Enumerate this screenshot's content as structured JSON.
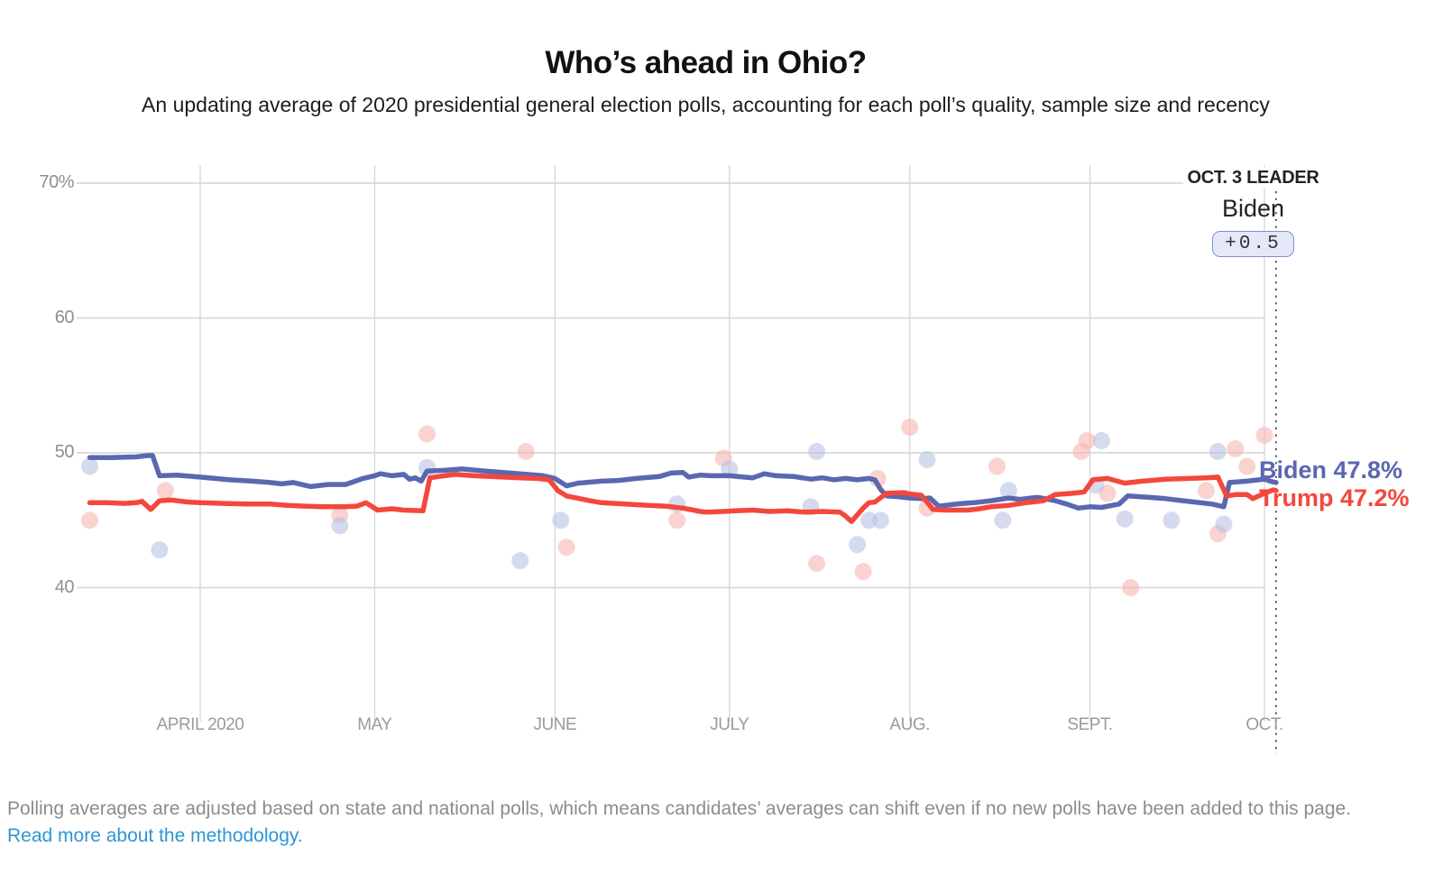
{
  "header": {
    "title": "Who’s ahead in Ohio?",
    "subtitle": "An updating average of 2020 presidential general election polls, accounting for each poll’s quality, sample size and recency"
  },
  "leader": {
    "label": "OCT. 3 LEADER",
    "name": "Biden",
    "margin": "+0.5"
  },
  "series_labels": {
    "biden": "Biden 47.8%",
    "trump": "Trump 47.2%"
  },
  "footer": {
    "text": "Polling averages are adjusted based on state and national polls, which means candidates’ averages can shift even if no new polls have been added to this page.",
    "link": "Read more about the methodology."
  },
  "colors": {
    "biden": "#5a67b1",
    "trump": "#f4473c",
    "biden_dot": "#b9c2e4",
    "trump_dot": "#f6b6b1",
    "grid": "#dadada",
    "month_grid": "#d9d9d9",
    "dashed": "#444444",
    "axis_text": "#8f8f8f",
    "link": "#2e96d4",
    "badge_bg": "#e4e8f8",
    "badge_border": "#7e8fd1"
  },
  "chart_data": {
    "type": "line",
    "title": "Who’s ahead in Ohio?",
    "x_domain": {
      "start": "2020-03-13",
      "end": "2020-10-03",
      "unit": "days_since_mar13"
    },
    "ylim": [
      30,
      71.4
    ],
    "grid": true,
    "y_ticks": [
      {
        "label": "70%",
        "value": 70
      },
      {
        "label": "60",
        "value": 60
      },
      {
        "label": "50",
        "value": 50
      },
      {
        "label": "40",
        "value": 40
      }
    ],
    "months": [
      {
        "label": "APRIL 2020",
        "day": 19
      },
      {
        "label": "MAY",
        "day": 49
      },
      {
        "label": "JUNE",
        "day": 80
      },
      {
        "label": "JULY",
        "day": 110
      },
      {
        "label": "AUG.",
        "day": 141
      },
      {
        "label": "SEPT.",
        "day": 172
      },
      {
        "label": "OCT.",
        "day": 202
      }
    ],
    "leader_day": 204,
    "series": [
      {
        "name": "Biden",
        "final_value": 47.8,
        "points": [
          [
            0,
            49.65
          ],
          [
            4,
            49.65
          ],
          [
            8,
            49.7
          ],
          [
            10,
            49.8
          ],
          [
            10.8,
            49.8
          ],
          [
            12,
            48.3
          ],
          [
            15,
            48.35
          ],
          [
            19,
            48.2
          ],
          [
            24,
            48.0
          ],
          [
            28,
            47.9
          ],
          [
            31,
            47.8
          ],
          [
            33,
            47.7
          ],
          [
            35,
            47.8
          ],
          [
            38,
            47.5
          ],
          [
            41,
            47.65
          ],
          [
            44,
            47.65
          ],
          [
            47,
            48.1
          ],
          [
            49,
            48.3
          ],
          [
            50,
            48.45
          ],
          [
            52,
            48.3
          ],
          [
            54,
            48.4
          ],
          [
            55,
            48.05
          ],
          [
            56,
            48.15
          ],
          [
            57,
            47.9
          ],
          [
            58,
            48.65
          ],
          [
            61,
            48.7
          ],
          [
            64,
            48.8
          ],
          [
            68,
            48.65
          ],
          [
            71,
            48.55
          ],
          [
            74,
            48.45
          ],
          [
            78,
            48.3
          ],
          [
            80,
            48.1
          ],
          [
            82,
            47.55
          ],
          [
            84,
            47.75
          ],
          [
            88,
            47.9
          ],
          [
            91,
            47.95
          ],
          [
            94,
            48.1
          ],
          [
            98,
            48.25
          ],
          [
            100,
            48.5
          ],
          [
            102,
            48.55
          ],
          [
            103,
            48.2
          ],
          [
            105,
            48.35
          ],
          [
            107,
            48.3
          ],
          [
            110,
            48.3
          ],
          [
            114,
            48.15
          ],
          [
            116,
            48.45
          ],
          [
            118,
            48.3
          ],
          [
            121,
            48.25
          ],
          [
            124,
            48.05
          ],
          [
            126,
            48.15
          ],
          [
            128,
            48.0
          ],
          [
            130,
            48.1
          ],
          [
            132,
            48.0
          ],
          [
            134,
            48.1
          ],
          [
            135,
            48.0
          ],
          [
            136,
            47.3
          ],
          [
            137,
            46.8
          ],
          [
            139,
            46.75
          ],
          [
            141,
            46.65
          ],
          [
            143,
            46.6
          ],
          [
            144.5,
            46.65
          ],
          [
            146,
            46.05
          ],
          [
            149,
            46.2
          ],
          [
            152,
            46.3
          ],
          [
            155,
            46.45
          ],
          [
            158,
            46.65
          ],
          [
            160,
            46.55
          ],
          [
            163,
            46.7
          ],
          [
            166,
            46.45
          ],
          [
            168,
            46.2
          ],
          [
            170,
            45.9
          ],
          [
            172,
            46.0
          ],
          [
            174,
            45.95
          ],
          [
            177,
            46.2
          ],
          [
            178.5,
            46.8
          ],
          [
            182,
            46.7
          ],
          [
            185,
            46.6
          ],
          [
            188,
            46.45
          ],
          [
            191,
            46.3
          ],
          [
            193,
            46.2
          ],
          [
            195,
            46.0
          ],
          [
            196,
            47.8
          ],
          [
            199,
            47.9
          ],
          [
            202,
            48.05
          ],
          [
            203,
            47.9
          ],
          [
            204,
            47.8
          ]
        ]
      },
      {
        "name": "Trump",
        "final_value": 47.2,
        "points": [
          [
            0,
            46.3
          ],
          [
            3,
            46.3
          ],
          [
            6,
            46.25
          ],
          [
            8,
            46.3
          ],
          [
            9,
            46.4
          ],
          [
            10.5,
            45.8
          ],
          [
            12,
            46.45
          ],
          [
            14,
            46.5
          ],
          [
            17,
            46.35
          ],
          [
            19,
            46.3
          ],
          [
            23,
            46.25
          ],
          [
            27,
            46.2
          ],
          [
            31,
            46.2
          ],
          [
            34,
            46.1
          ],
          [
            37,
            46.05
          ],
          [
            40,
            46.0
          ],
          [
            44,
            46.0
          ],
          [
            46,
            46.05
          ],
          [
            47.5,
            46.3
          ],
          [
            49.5,
            45.75
          ],
          [
            52,
            45.85
          ],
          [
            54,
            45.75
          ],
          [
            57.3,
            45.7
          ],
          [
            58.5,
            48.15
          ],
          [
            61,
            48.3
          ],
          [
            63,
            48.4
          ],
          [
            66,
            48.3
          ],
          [
            69,
            48.25
          ],
          [
            71,
            48.2
          ],
          [
            74,
            48.15
          ],
          [
            77,
            48.1
          ],
          [
            79,
            48.0
          ],
          [
            80.5,
            47.2
          ],
          [
            82,
            46.8
          ],
          [
            86,
            46.45
          ],
          [
            88,
            46.3
          ],
          [
            92,
            46.2
          ],
          [
            96,
            46.1
          ],
          [
            99,
            46.05
          ],
          [
            102,
            45.9
          ],
          [
            105,
            45.65
          ],
          [
            106,
            45.6
          ],
          [
            109,
            45.65
          ],
          [
            111,
            45.7
          ],
          [
            114,
            45.75
          ],
          [
            117,
            45.65
          ],
          [
            120,
            45.7
          ],
          [
            123,
            45.6
          ],
          [
            126,
            45.65
          ],
          [
            129,
            45.6
          ],
          [
            130,
            45.3
          ],
          [
            131,
            44.9
          ],
          [
            132,
            45.4
          ],
          [
            133,
            45.9
          ],
          [
            134,
            46.3
          ],
          [
            135,
            46.35
          ],
          [
            137,
            47.0
          ],
          [
            140,
            47.05
          ],
          [
            141,
            46.95
          ],
          [
            143,
            46.85
          ],
          [
            145,
            45.8
          ],
          [
            147,
            45.75
          ],
          [
            151,
            45.75
          ],
          [
            153,
            45.85
          ],
          [
            155,
            46.0
          ],
          [
            158,
            46.1
          ],
          [
            161,
            46.3
          ],
          [
            164,
            46.45
          ],
          [
            166,
            46.9
          ],
          [
            169,
            47.0
          ],
          [
            171,
            47.1
          ],
          [
            172.5,
            48.0
          ],
          [
            175,
            48.1
          ],
          [
            178,
            47.75
          ],
          [
            181,
            47.9
          ],
          [
            185,
            48.05
          ],
          [
            189,
            48.1
          ],
          [
            192,
            48.15
          ],
          [
            194,
            48.2
          ],
          [
            195.5,
            46.8
          ],
          [
            197,
            46.9
          ],
          [
            199,
            46.9
          ],
          [
            200,
            46.6
          ],
          [
            202,
            47.0
          ],
          [
            203.5,
            47.25
          ],
          [
            204,
            47.2
          ]
        ]
      }
    ],
    "polls": {
      "biden": [
        [
          0,
          49.0
        ],
        [
          12,
          42.8
        ],
        [
          43,
          44.6
        ],
        [
          58,
          48.9
        ],
        [
          74,
          42.0
        ],
        [
          81,
          45.0
        ],
        [
          101,
          46.2
        ],
        [
          110,
          48.8
        ],
        [
          124,
          46.0
        ],
        [
          125,
          50.1
        ],
        [
          132,
          43.2
        ],
        [
          134,
          45.0
        ],
        [
          136,
          45.0
        ],
        [
          144,
          49.5
        ],
        [
          157,
          45.0
        ],
        [
          158,
          47.2
        ],
        [
          173,
          47.6
        ],
        [
          174,
          50.9
        ],
        [
          178,
          45.1
        ],
        [
          186,
          45.0
        ],
        [
          194,
          50.1
        ],
        [
          195,
          44.7
        ]
      ],
      "trump": [
        [
          0,
          45.0
        ],
        [
          13,
          47.2
        ],
        [
          43,
          45.4
        ],
        [
          58,
          51.4
        ],
        [
          75,
          50.1
        ],
        [
          82,
          43.0
        ],
        [
          101,
          45.0
        ],
        [
          109,
          49.6
        ],
        [
          125,
          41.8
        ],
        [
          133,
          41.2
        ],
        [
          135.5,
          48.1
        ],
        [
          141,
          51.9
        ],
        [
          144,
          45.9
        ],
        [
          156,
          49.0
        ],
        [
          170.5,
          50.1
        ],
        [
          171.5,
          50.9
        ],
        [
          175,
          47.0
        ],
        [
          179,
          40.0
        ],
        [
          192,
          47.2
        ],
        [
          194,
          44.0
        ],
        [
          197,
          50.3
        ],
        [
          199,
          49.0
        ],
        [
          202,
          51.3
        ]
      ]
    },
    "legend_position": "right-of-line-ends"
  }
}
